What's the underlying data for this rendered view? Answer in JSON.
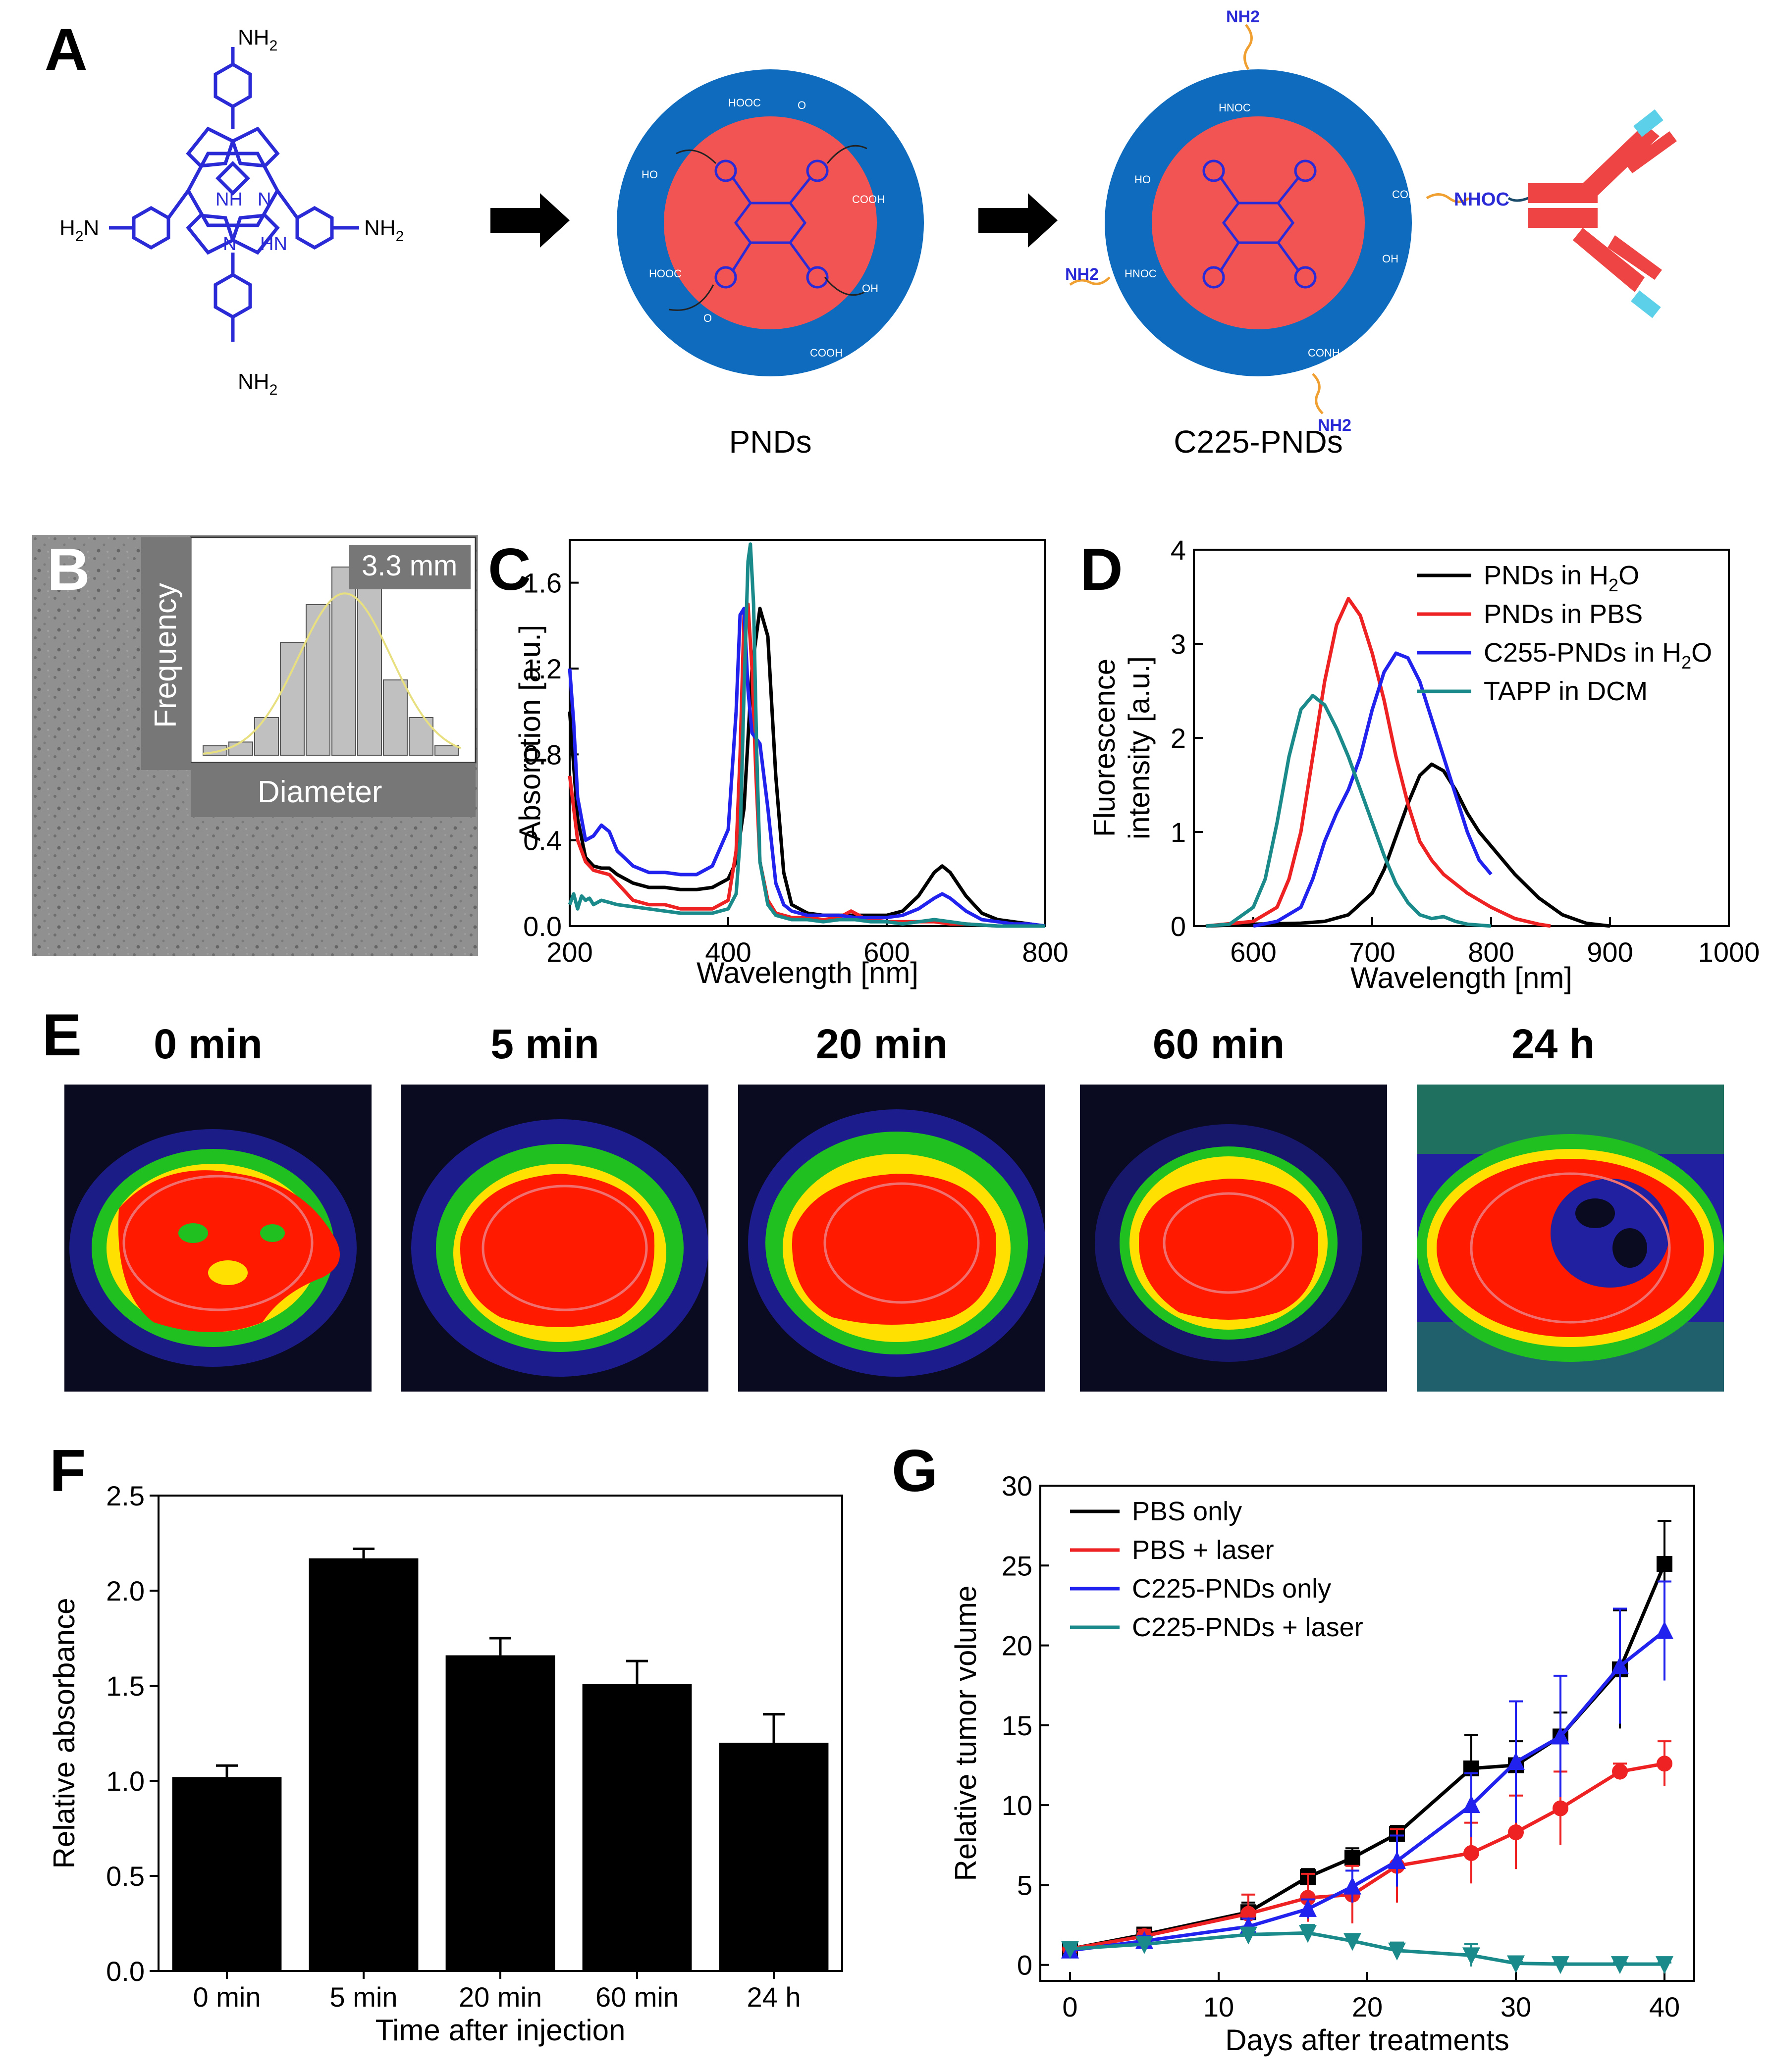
{
  "panels": {
    "a": "A",
    "b": "B",
    "c": "C",
    "d": "D",
    "e": "E",
    "f": "F",
    "g": "G"
  },
  "panel_a": {
    "amine_label": "NH2",
    "amine_main": "NH",
    "amine_sub": "2",
    "amine_left_main": "H",
    "amine_left_sub": "2",
    "amine_left_tail": "N",
    "ring_nh": "NH",
    "ring_hn": "HN",
    "ring_n": "N",
    "shell_groups": [
      "HOOC",
      "COOH",
      "OH",
      "HO",
      "O",
      "CONH",
      "HNOC",
      "NHOC"
    ],
    "nhoc_label": "NHOC",
    "pnds_caption": "PNDs",
    "c225_caption": "C225-PNDs",
    "colors": {
      "core": "#f25454",
      "shell": "#0e6bbd",
      "porphyrin": "#2a2ad6",
      "antibody": "#ee4444",
      "antibody_tip": "#5bd0e8",
      "linker": "#f0a030"
    }
  },
  "panel_b": {
    "inset_label": "3.3 mm",
    "ylabel": "Frequency",
    "xlabel": "Diameter",
    "histogram": [
      0.05,
      0.07,
      0.2,
      0.6,
      0.8,
      1.0,
      0.95,
      0.4,
      0.2,
      0.05
    ],
    "fit_color": "#e8e080"
  },
  "chart_data": [
    {
      "id": "C",
      "type": "line",
      "xlabel": "Wavelength [nm]",
      "ylabel": "Absorption [a.u.]",
      "xlim": [
        200,
        800
      ],
      "ylim": [
        0,
        1.8
      ],
      "xticks": [
        "200",
        "400",
        "600",
        "800"
      ],
      "yticks": [
        "0.0",
        "0.4",
        "0.8",
        "1.2",
        "1.6"
      ],
      "series": [
        {
          "name": "PNDs in H2O",
          "color": "#000000",
          "x": [
            200,
            210,
            220,
            230,
            240,
            250,
            260,
            280,
            300,
            320,
            340,
            360,
            380,
            400,
            410,
            420,
            430,
            440,
            450,
            460,
            470,
            480,
            500,
            520,
            540,
            560,
            580,
            600,
            620,
            640,
            660,
            670,
            680,
            700,
            720,
            740,
            760,
            780,
            800
          ],
          "y": [
            1.0,
            0.5,
            0.32,
            0.28,
            0.27,
            0.27,
            0.24,
            0.2,
            0.18,
            0.18,
            0.17,
            0.17,
            0.18,
            0.22,
            0.3,
            0.55,
            1.2,
            1.48,
            1.35,
            0.7,
            0.25,
            0.1,
            0.06,
            0.05,
            0.05,
            0.05,
            0.05,
            0.05,
            0.07,
            0.14,
            0.25,
            0.28,
            0.25,
            0.14,
            0.06,
            0.03,
            0.02,
            0.01,
            0.0
          ]
        },
        {
          "name": "PNDs in PBS",
          "color": "#ee2222",
          "x": [
            200,
            210,
            220,
            230,
            240,
            250,
            260,
            280,
            300,
            320,
            340,
            360,
            380,
            400,
            410,
            415,
            420,
            425,
            430,
            435,
            440,
            450,
            460,
            480,
            500,
            520,
            540,
            555,
            560,
            570,
            580,
            600,
            620,
            640,
            660,
            680,
            700,
            740,
            800
          ],
          "y": [
            0.7,
            0.4,
            0.3,
            0.26,
            0.25,
            0.24,
            0.2,
            0.12,
            0.1,
            0.1,
            0.08,
            0.08,
            0.08,
            0.12,
            0.35,
            0.8,
            1.45,
            1.5,
            1.2,
            0.7,
            0.3,
            0.12,
            0.06,
            0.04,
            0.04,
            0.03,
            0.04,
            0.07,
            0.06,
            0.04,
            0.03,
            0.02,
            0.02,
            0.02,
            0.02,
            0.01,
            0.01,
            0.0,
            0.0
          ]
        },
        {
          "name": "C255-PNDs in H2O",
          "color": "#2222ee",
          "x": [
            200,
            205,
            210,
            220,
            230,
            240,
            250,
            260,
            280,
            300,
            320,
            340,
            360,
            380,
            400,
            410,
            415,
            420,
            425,
            430,
            440,
            450,
            460,
            470,
            480,
            500,
            520,
            540,
            560,
            580,
            600,
            620,
            640,
            660,
            670,
            680,
            700,
            720,
            740,
            760,
            780,
            800
          ],
          "y": [
            1.2,
            0.95,
            0.6,
            0.4,
            0.42,
            0.47,
            0.44,
            0.35,
            0.28,
            0.25,
            0.25,
            0.24,
            0.24,
            0.28,
            0.45,
            1.0,
            1.45,
            1.48,
            1.1,
            0.9,
            0.85,
            0.55,
            0.2,
            0.1,
            0.07,
            0.05,
            0.05,
            0.05,
            0.04,
            0.04,
            0.04,
            0.05,
            0.08,
            0.13,
            0.15,
            0.13,
            0.07,
            0.03,
            0.02,
            0.01,
            0.01,
            0.0
          ]
        },
        {
          "name": "TAPP in DCM",
          "color": "#1a8a8a",
          "x": [
            200,
            205,
            210,
            215,
            220,
            225,
            230,
            240,
            250,
            260,
            280,
            300,
            320,
            340,
            360,
            380,
            400,
            410,
            415,
            420,
            425,
            428,
            432,
            436,
            440,
            450,
            460,
            480,
            500,
            520,
            540,
            560,
            580,
            600,
            620,
            640,
            660,
            680,
            700,
            740,
            800
          ],
          "y": [
            0.1,
            0.15,
            0.08,
            0.14,
            0.12,
            0.13,
            0.1,
            0.12,
            0.11,
            0.1,
            0.09,
            0.08,
            0.07,
            0.06,
            0.06,
            0.06,
            0.08,
            0.15,
            0.4,
            1.1,
            1.7,
            1.78,
            1.5,
            0.8,
            0.3,
            0.1,
            0.05,
            0.03,
            0.03,
            0.02,
            0.03,
            0.03,
            0.02,
            0.02,
            0.01,
            0.02,
            0.03,
            0.02,
            0.01,
            0.0,
            0.0
          ]
        }
      ]
    },
    {
      "id": "D",
      "type": "line",
      "xlabel": "Wavelength [nm]",
      "ylabel_line1": "Fluorescence",
      "ylabel_line2": "intensity [a.u.]",
      "xlim": [
        550,
        1000
      ],
      "ylim": [
        0,
        4
      ],
      "xticks": [
        "600",
        "700",
        "800",
        "900",
        "1000"
      ],
      "yticks": [
        "0",
        "1",
        "2",
        "3",
        "4"
      ],
      "legend_position": "top-right",
      "legend": [
        {
          "main": "PNDs in H",
          "sub": "2",
          "tail": "O",
          "color": "#000000"
        },
        {
          "main": "PNDs in PBS",
          "sub": "",
          "tail": "",
          "color": "#ee2222"
        },
        {
          "main": "C255-PNDs in H",
          "sub": "2",
          "tail": "O",
          "color": "#2222ee"
        },
        {
          "main": "TAPP in DCM",
          "sub": "",
          "tail": "",
          "color": "#1a8a8a"
        }
      ],
      "series": [
        {
          "name": "PNDs in H2O",
          "color": "#000000",
          "x": [
            560,
            600,
            640,
            660,
            680,
            700,
            710,
            720,
            730,
            740,
            750,
            760,
            770,
            780,
            790,
            800,
            820,
            840,
            860,
            880,
            900
          ],
          "y": [
            0.0,
            0.02,
            0.03,
            0.05,
            0.12,
            0.35,
            0.6,
            0.95,
            1.3,
            1.6,
            1.72,
            1.65,
            1.45,
            1.2,
            1.0,
            0.85,
            0.55,
            0.3,
            0.12,
            0.03,
            0.0
          ]
        },
        {
          "name": "PNDs in PBS",
          "color": "#ee2222",
          "x": [
            560,
            600,
            620,
            630,
            640,
            650,
            660,
            670,
            680,
            690,
            700,
            710,
            720,
            730,
            740,
            750,
            760,
            780,
            800,
            820,
            840,
            850
          ],
          "y": [
            0.0,
            0.05,
            0.2,
            0.5,
            1.0,
            1.8,
            2.6,
            3.2,
            3.48,
            3.3,
            2.9,
            2.4,
            1.8,
            1.3,
            0.9,
            0.7,
            0.55,
            0.35,
            0.2,
            0.08,
            0.02,
            0.0
          ]
        },
        {
          "name": "C255-PNDs in H2O",
          "color": "#2222ee",
          "x": [
            600,
            620,
            640,
            650,
            660,
            670,
            680,
            690,
            700,
            710,
            720,
            730,
            740,
            750,
            760,
            770,
            780,
            790,
            800
          ],
          "y": [
            0.0,
            0.05,
            0.2,
            0.5,
            0.9,
            1.2,
            1.45,
            1.8,
            2.3,
            2.7,
            2.9,
            2.85,
            2.6,
            2.2,
            1.8,
            1.4,
            1.0,
            0.7,
            0.55
          ]
        },
        {
          "name": "TAPP in DCM",
          "color": "#1a8a8a",
          "x": [
            560,
            580,
            600,
            610,
            620,
            630,
            640,
            650,
            660,
            670,
            680,
            690,
            700,
            710,
            720,
            730,
            740,
            750,
            760,
            770,
            780,
            800
          ],
          "y": [
            0.0,
            0.02,
            0.2,
            0.5,
            1.1,
            1.8,
            2.3,
            2.45,
            2.35,
            2.1,
            1.8,
            1.45,
            1.1,
            0.75,
            0.45,
            0.25,
            0.12,
            0.08,
            0.1,
            0.05,
            0.02,
            0.0
          ]
        }
      ]
    },
    {
      "id": "F",
      "type": "bar",
      "xlabel": "Time after injection",
      "ylabel": "Relative absorbance",
      "categories": [
        "0 min",
        "5 min",
        "20 min",
        "60 min",
        "24 h"
      ],
      "values": [
        1.02,
        2.17,
        1.66,
        1.51,
        1.2
      ],
      "errors": [
        0.06,
        0.05,
        0.09,
        0.12,
        0.15
      ],
      "ylim": [
        0,
        2.5
      ],
      "yticks": [
        "0.0",
        "0.5",
        "1.0",
        "1.5",
        "2.0",
        "2.5"
      ],
      "bar_color": "#000000"
    },
    {
      "id": "G",
      "type": "line",
      "xlabel": "Days after treatments",
      "ylabel": "Relative tumor volume",
      "xlim": [
        -2,
        42
      ],
      "ylim": [
        -1,
        30
      ],
      "xticks": [
        "0",
        "10",
        "20",
        "30",
        "40"
      ],
      "yticks": [
        "0",
        "5",
        "10",
        "15",
        "20",
        "25",
        "30"
      ],
      "legend_position": "top-left",
      "series": [
        {
          "name": "PBS only",
          "color": "#000000",
          "marker": "square",
          "x": [
            0,
            5,
            12,
            16,
            19,
            22,
            27,
            30,
            33,
            37,
            40
          ],
          "y": [
            1.0,
            1.9,
            3.3,
            5.5,
            6.7,
            8.2,
            12.3,
            12.5,
            14.3,
            18.5,
            25.1
          ],
          "err": [
            0.3,
            0.4,
            0.6,
            0.5,
            0.6,
            0.5,
            2.1,
            1.5,
            1.5,
            3.7,
            2.7
          ]
        },
        {
          "name": "PBS + laser",
          "color": "#ee2222",
          "marker": "circle",
          "x": [
            0,
            5,
            12,
            16,
            19,
            22,
            27,
            30,
            33,
            37,
            40
          ],
          "y": [
            1.0,
            1.8,
            3.2,
            4.2,
            4.4,
            6.2,
            7.0,
            8.3,
            9.8,
            12.1,
            12.6
          ],
          "err": [
            0.3,
            0.4,
            1.2,
            1.5,
            1.8,
            2.3,
            1.9,
            2.3,
            2.3,
            0.5,
            1.4
          ]
        },
        {
          "name": "C225-PNDs only",
          "color": "#2222ee",
          "marker": "triangle-up",
          "x": [
            0,
            5,
            12,
            16,
            19,
            22,
            27,
            30,
            33,
            37,
            40
          ],
          "y": [
            0.9,
            1.5,
            2.4,
            3.5,
            4.9,
            6.5,
            10.0,
            12.7,
            14.3,
            18.7,
            20.9
          ],
          "err": [
            0.3,
            0.3,
            0.5,
            0.6,
            1.0,
            1.6,
            2.0,
            3.8,
            3.8,
            3.6,
            3.1
          ]
        },
        {
          "name": "C225-PNDs + laser",
          "color": "#1a8a8a",
          "marker": "triangle-down",
          "x": [
            0,
            5,
            12,
            16,
            19,
            22,
            27,
            30,
            33,
            37,
            40
          ],
          "y": [
            1.0,
            1.3,
            1.9,
            2.0,
            1.5,
            0.9,
            0.6,
            0.1,
            0.05,
            0.05,
            0.05
          ],
          "err": [
            0.2,
            0.3,
            0.4,
            0.5,
            0.4,
            0.5,
            0.7,
            0.1,
            0.1,
            0.1,
            0.1
          ]
        }
      ]
    }
  ],
  "panel_e": {
    "labels": [
      "0 min",
      "5 min",
      "20 min",
      "60 min",
      "24 h"
    ],
    "colors": {
      "hot": "#ff1a00",
      "warm": "#ffe000",
      "mid": "#20c020",
      "cool": "#2020a0",
      "bg": "#0a0a20"
    }
  }
}
